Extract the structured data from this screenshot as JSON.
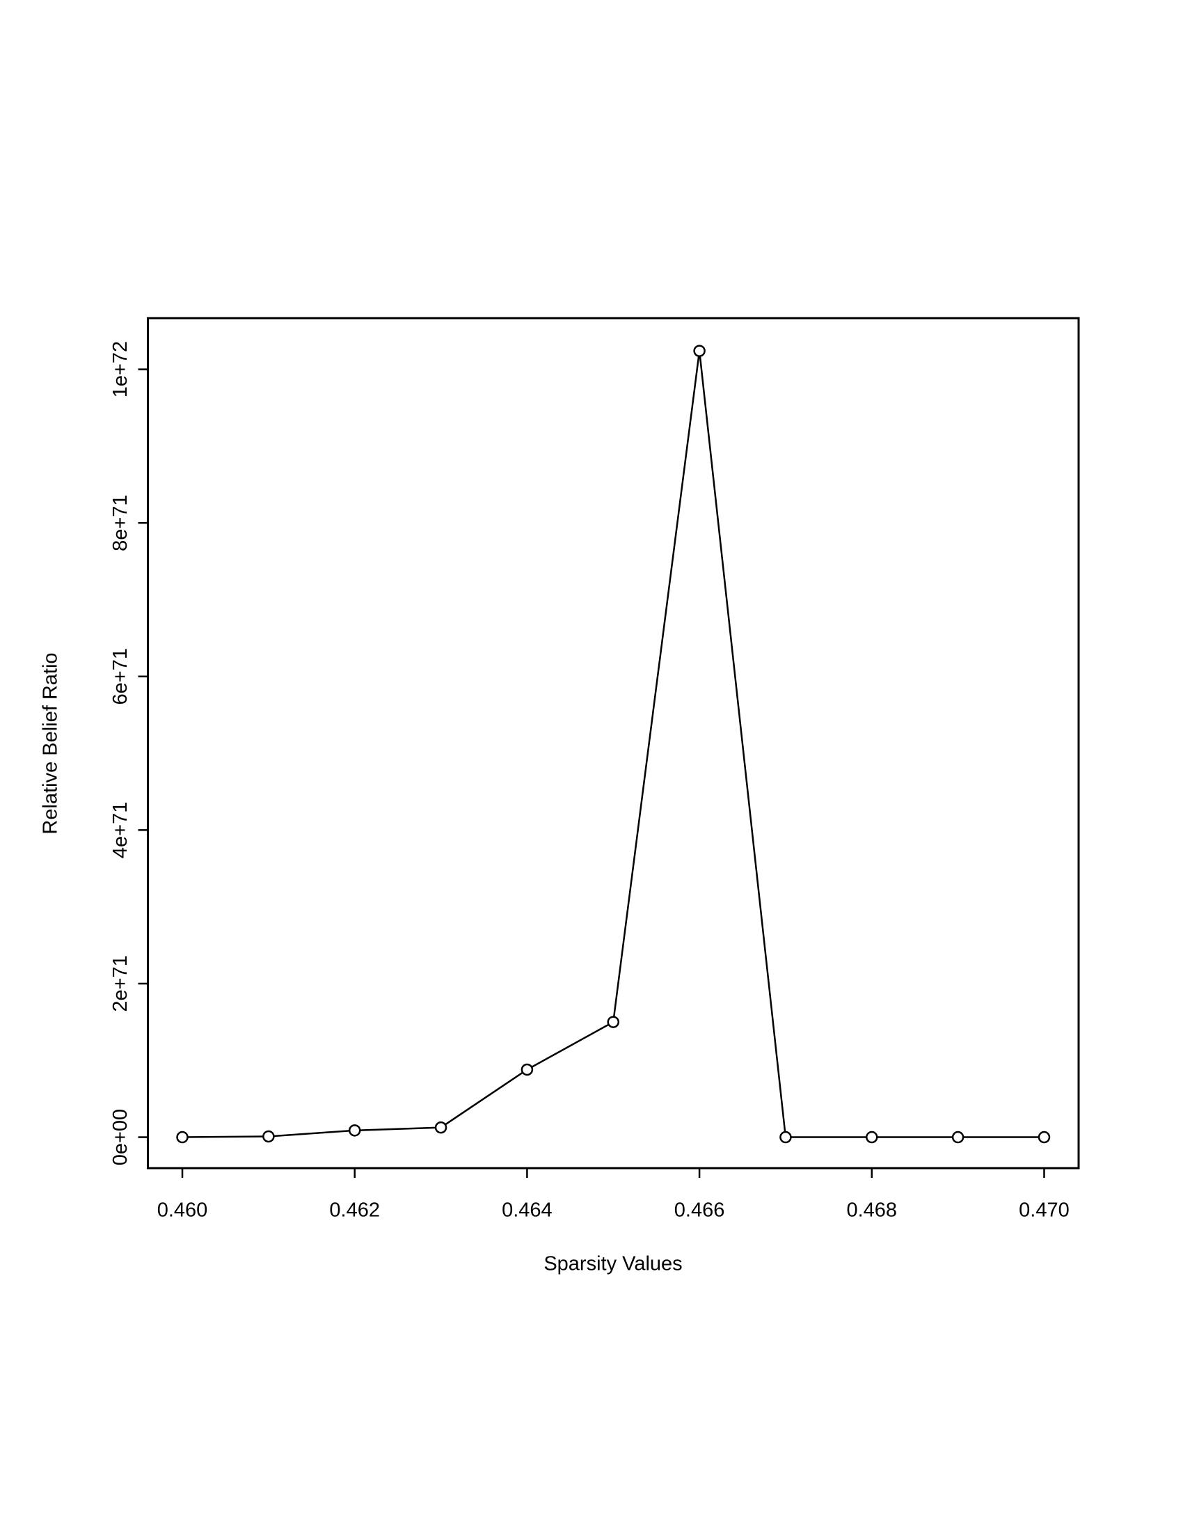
{
  "chart_data": {
    "type": "line",
    "x_label": "Sparsity Values",
    "y_label": "Relative Belief Ratio",
    "x": [
      0.46,
      0.461,
      0.462,
      0.463,
      0.464,
      0.465,
      0.466,
      0.467,
      0.468,
      0.469,
      0.47
    ],
    "series": [
      {
        "name": "Relative Belief Ratio",
        "color": "#000000",
        "values": [
          0,
          1e+69,
          8.8e+69,
          1.26e+70,
          8.8e+70,
          1.5e+71,
          1.024e+72,
          0,
          0,
          0,
          0
        ]
      }
    ],
    "xlim": [
      0.4596,
      0.4704
    ],
    "ylim": [
      -4.03e+70,
      1.0667e+72
    ],
    "xticks": [
      {
        "value": 0.46,
        "label": "0.460"
      },
      0.462,
      0.464,
      0.466,
      0.468,
      {
        "value": 0.47,
        "label": "0.470"
      }
    ],
    "yticks": [
      {
        "value": 0,
        "label": "0e+00"
      },
      {
        "value": 2e+71,
        "label": "2e+71"
      },
      {
        "value": 4e+71,
        "label": "4e+71"
      },
      {
        "value": 6e+71,
        "label": "6e+71"
      },
      {
        "value": 8e+71,
        "label": "8e+71"
      },
      {
        "value": 1e+72,
        "label": "1e+72"
      }
    ],
    "grid": false
  }
}
